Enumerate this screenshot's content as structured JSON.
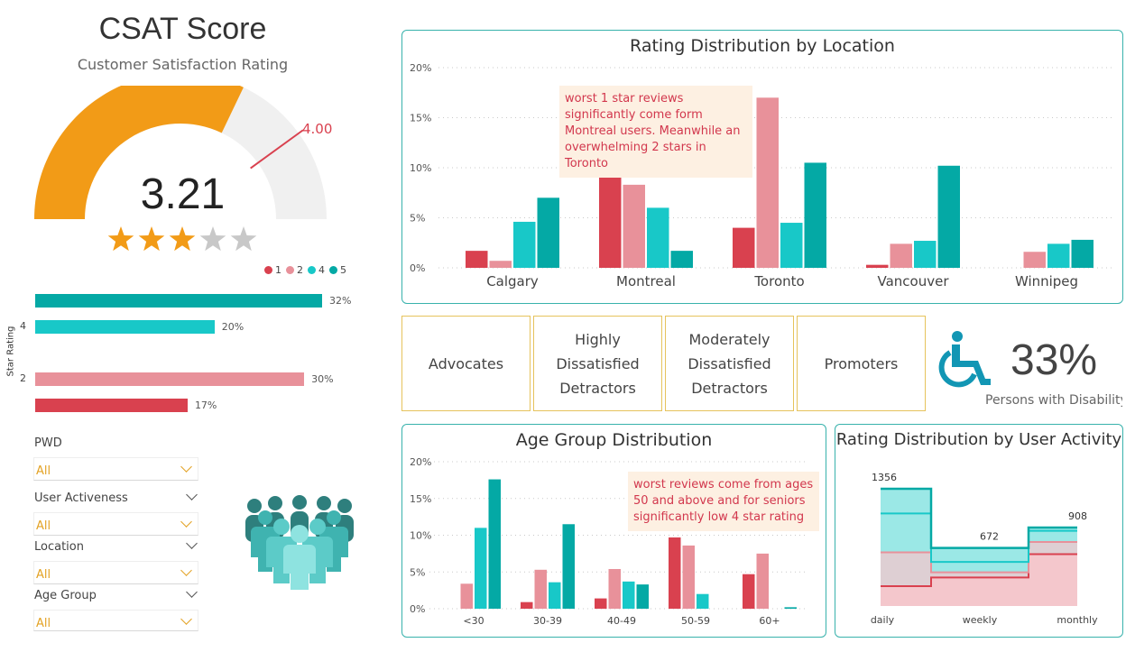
{
  "gauge": {
    "title": "CSAT Score",
    "subtitle": "Customer Satisfaction Rating",
    "value_label": "3.21",
    "target_label": "4.00",
    "value": 3.21,
    "target": 4.0,
    "min": 0,
    "max": 5,
    "stars_filled": 3,
    "stars_total": 5
  },
  "star_chart": {
    "legend": [
      "1",
      "2",
      "4",
      "5"
    ],
    "axis_label": "Star Rating",
    "tick_4": "4",
    "tick_2": "2",
    "bars": [
      {
        "rating": "5",
        "value": 32,
        "label": "32%"
      },
      {
        "rating": "4",
        "value": 20,
        "label": "20%"
      },
      {
        "rating": "2",
        "value": 30,
        "label": "30%"
      },
      {
        "rating": "1",
        "value": 17,
        "label": "17%"
      }
    ]
  },
  "filters": [
    {
      "label": "PWD",
      "value": "All"
    },
    {
      "label": "User Activeness",
      "value": "All"
    },
    {
      "label": "Location",
      "value": "All"
    },
    {
      "label": "Age Group",
      "value": "All"
    }
  ],
  "kpis": [
    {
      "lines": [
        "Advocates"
      ]
    },
    {
      "lines": [
        "Highly",
        "Dissatisfied",
        "Detractors"
      ]
    },
    {
      "lines": [
        "Moderately",
        "Dissatisfied",
        "Detractors"
      ]
    },
    {
      "lines": [
        "Promoters"
      ]
    }
  ],
  "disability": {
    "value": "33%",
    "label": "Persons with Disability"
  },
  "colors": {
    "r1": "#d9414f",
    "r2": "#e8919a",
    "r4": "#18c8c8",
    "r5": "#04a9a5",
    "gauge": "#f29b17",
    "gauge_bg": "#f0f0f0",
    "target": "#d9414f"
  },
  "chart_data": [
    {
      "type": "bar",
      "title": "Rating Distribution by Location",
      "categories": [
        "Calgary",
        "Montreal",
        "Toronto",
        "Vancouver",
        "Winnipeg"
      ],
      "ylim": [
        0,
        20
      ],
      "y_ticks": [
        "0%",
        "5%",
        "10%",
        "15%",
        "20%"
      ],
      "series": [
        {
          "name": "1",
          "values": [
            1.7,
            10.6,
            4.0,
            0.3,
            0
          ]
        },
        {
          "name": "2",
          "values": [
            0.7,
            8.3,
            17.0,
            2.4,
            1.6
          ]
        },
        {
          "name": "4",
          "values": [
            4.6,
            6.0,
            4.5,
            2.7,
            2.4
          ]
        },
        {
          "name": "5",
          "values": [
            7.0,
            1.7,
            10.5,
            10.2,
            2.8
          ]
        }
      ],
      "annotation": "worst 1 star reviews  significantly come form Montreal users. Meanwhile an overwhelming 2 stars in Toronto"
    },
    {
      "type": "bar",
      "title": "Age Group Distribution",
      "categories": [
        "<30",
        "30-39",
        "40-49",
        "50-59",
        "60+"
      ],
      "ylim": [
        0,
        20
      ],
      "y_ticks": [
        "0%",
        "5%",
        "10%",
        "15%",
        "20%"
      ],
      "series": [
        {
          "name": "1",
          "values": [
            0,
            0.9,
            1.4,
            9.7,
            4.7
          ]
        },
        {
          "name": "2",
          "values": [
            3.4,
            5.3,
            5.4,
            8.6,
            7.5
          ]
        },
        {
          "name": "4",
          "values": [
            11.0,
            3.6,
            3.7,
            2.0,
            0
          ]
        },
        {
          "name": "5",
          "values": [
            17.6,
            11.5,
            3.3,
            0,
            0.2
          ]
        }
      ],
      "annotation": "worst reviews come from ages 50 and above and for seniors significantly low 4 star rating"
    },
    {
      "type": "area",
      "title": "Rating Distribution by User Activity",
      "categories": [
        "daily",
        "weekly",
        "monthly"
      ],
      "totals": [
        1356,
        672,
        908
      ],
      "total_labels": [
        "1356",
        "672",
        "908"
      ],
      "series": [
        {
          "name": "1",
          "values": [
            230,
            330,
            600
          ]
        },
        {
          "name": "2",
          "values": [
            390,
            60,
            140
          ]
        },
        {
          "name": "4",
          "values": [
            450,
            120,
            130
          ]
        },
        {
          "name": "5",
          "values": [
            286,
            162,
            38
          ]
        }
      ]
    }
  ]
}
